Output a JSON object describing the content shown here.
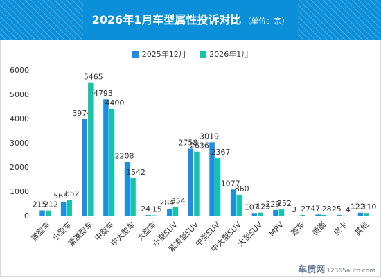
{
  "header": {
    "title": "2026年1月车型属性投诉对比",
    "unit": "（单位：宗）"
  },
  "watermark": {
    "logo": "车质网",
    "site": "12365auto.com"
  },
  "colors": {
    "header_bg": "#0c8fd9",
    "series_1": "#1a8fe3",
    "series_2": "#17c3a7"
  },
  "chart_data": {
    "type": "bar",
    "categories": [
      "微型车",
      "小型车",
      "紧凑型车",
      "中型车",
      "中大型车",
      "大型车",
      "小型SUV",
      "紧凑型SUV",
      "中型SUV",
      "中大型SUV",
      "大型SUV",
      "MPV",
      "跑车",
      "微面",
      "皮卡",
      "其他"
    ],
    "series": [
      {
        "name": "2025年12月",
        "values": [
          215,
          565,
          3974,
          4793,
          2208,
          24,
          284,
          2758,
          3019,
          1077,
          107,
          229,
          3,
          47,
          25,
          122
        ]
      },
      {
        "name": "2026年1月",
        "values": [
          212,
          652,
          5465,
          4400,
          1542,
          15,
          354,
          2636,
          2367,
          860,
          123,
          252,
          27,
          28,
          4,
          110
        ]
      }
    ],
    "ylim": [
      0,
      6000
    ],
    "yticks": [
      0,
      1000,
      2000,
      3000,
      4000,
      5000,
      6000
    ],
    "legend_position": "top-center",
    "grid": false,
    "data_labels": true
  }
}
